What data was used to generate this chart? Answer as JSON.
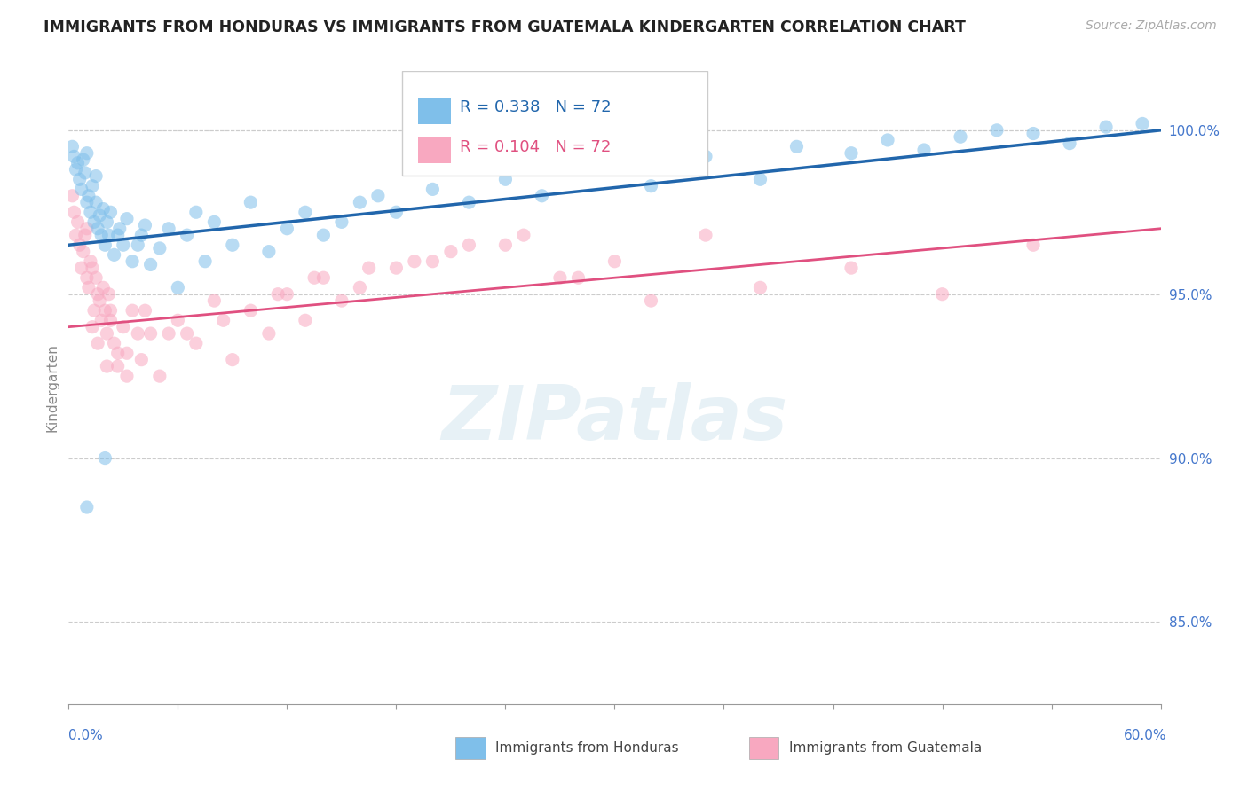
{
  "title": "IMMIGRANTS FROM HONDURAS VS IMMIGRANTS FROM GUATEMALA KINDERGARTEN CORRELATION CHART",
  "source": "Source: ZipAtlas.com",
  "ylabel": "Kindergarten",
  "xmin": 0.0,
  "xmax": 60.0,
  "ymin": 82.5,
  "ymax": 101.8,
  "yticks": [
    85.0,
    90.0,
    95.0,
    100.0
  ],
  "r_honduras": 0.338,
  "r_guatemala": 0.104,
  "n_honduras": 72,
  "n_guatemala": 72,
  "color_honduras": "#7fbfea",
  "color_guatemala": "#f8a8c0",
  "trend_color_honduras": "#2166ac",
  "trend_color_guatemala": "#e05080",
  "background_color": "#ffffff",
  "watermark_text": "ZIPatlas",
  "scatter_alpha": 0.55,
  "scatter_size": 120,
  "honduras_x": [
    0.2,
    0.3,
    0.4,
    0.5,
    0.6,
    0.7,
    0.8,
    0.9,
    1.0,
    1.0,
    1.1,
    1.2,
    1.3,
    1.4,
    1.5,
    1.5,
    1.6,
    1.7,
    1.8,
    1.9,
    2.0,
    2.1,
    2.2,
    2.3,
    2.5,
    2.7,
    2.8,
    3.0,
    3.2,
    3.5,
    3.8,
    4.0,
    4.2,
    4.5,
    5.0,
    5.5,
    6.0,
    6.5,
    7.0,
    7.5,
    8.0,
    9.0,
    10.0,
    11.0,
    12.0,
    13.0,
    14.0,
    15.0,
    16.0,
    17.0,
    18.0,
    20.0,
    22.0,
    24.0,
    26.0,
    28.0,
    30.0,
    32.0,
    35.0,
    38.0,
    40.0,
    43.0,
    45.0,
    47.0,
    49.0,
    51.0,
    53.0,
    55.0,
    57.0,
    59.0,
    1.0,
    2.0
  ],
  "honduras_y": [
    99.5,
    99.2,
    98.8,
    99.0,
    98.5,
    98.2,
    99.1,
    98.7,
    97.8,
    99.3,
    98.0,
    97.5,
    98.3,
    97.2,
    97.8,
    98.6,
    97.0,
    97.4,
    96.8,
    97.6,
    96.5,
    97.2,
    96.8,
    97.5,
    96.2,
    96.8,
    97.0,
    96.5,
    97.3,
    96.0,
    96.5,
    96.8,
    97.1,
    95.9,
    96.4,
    97.0,
    95.2,
    96.8,
    97.5,
    96.0,
    97.2,
    96.5,
    97.8,
    96.3,
    97.0,
    97.5,
    96.8,
    97.2,
    97.8,
    98.0,
    97.5,
    98.2,
    97.8,
    98.5,
    98.0,
    98.8,
    99.0,
    98.3,
    99.2,
    98.5,
    99.5,
    99.3,
    99.7,
    99.4,
    99.8,
    100.0,
    99.9,
    99.6,
    100.1,
    100.2,
    88.5,
    90.0
  ],
  "guatemala_x": [
    0.2,
    0.3,
    0.4,
    0.5,
    0.6,
    0.7,
    0.8,
    0.9,
    1.0,
    1.0,
    1.1,
    1.2,
    1.3,
    1.4,
    1.5,
    1.6,
    1.7,
    1.8,
    1.9,
    2.0,
    2.1,
    2.2,
    2.3,
    2.5,
    2.7,
    3.0,
    3.2,
    3.5,
    4.0,
    4.5,
    5.0,
    5.5,
    6.0,
    7.0,
    8.0,
    9.0,
    10.0,
    11.0,
    12.0,
    13.0,
    14.0,
    15.0,
    16.0,
    18.0,
    20.0,
    22.0,
    25.0,
    28.0,
    30.0,
    35.0,
    1.3,
    1.6,
    2.1,
    2.3,
    2.7,
    3.2,
    3.8,
    4.2,
    6.5,
    8.5,
    11.5,
    13.5,
    16.5,
    19.0,
    21.0,
    24.0,
    27.0,
    32.0,
    38.0,
    43.0,
    48.0,
    53.0
  ],
  "guatemala_y": [
    98.0,
    97.5,
    96.8,
    97.2,
    96.5,
    95.8,
    96.3,
    96.8,
    95.5,
    97.0,
    95.2,
    96.0,
    95.8,
    94.5,
    95.5,
    95.0,
    94.8,
    94.2,
    95.2,
    94.5,
    93.8,
    95.0,
    94.2,
    93.5,
    92.8,
    94.0,
    93.2,
    94.5,
    93.0,
    93.8,
    92.5,
    93.8,
    94.2,
    93.5,
    94.8,
    93.0,
    94.5,
    93.8,
    95.0,
    94.2,
    95.5,
    94.8,
    95.2,
    95.8,
    96.0,
    96.5,
    96.8,
    95.5,
    96.0,
    96.8,
    94.0,
    93.5,
    92.8,
    94.5,
    93.2,
    92.5,
    93.8,
    94.5,
    93.8,
    94.2,
    95.0,
    95.5,
    95.8,
    96.0,
    96.3,
    96.5,
    95.5,
    94.8,
    95.2,
    95.8,
    95.0,
    96.5
  ]
}
